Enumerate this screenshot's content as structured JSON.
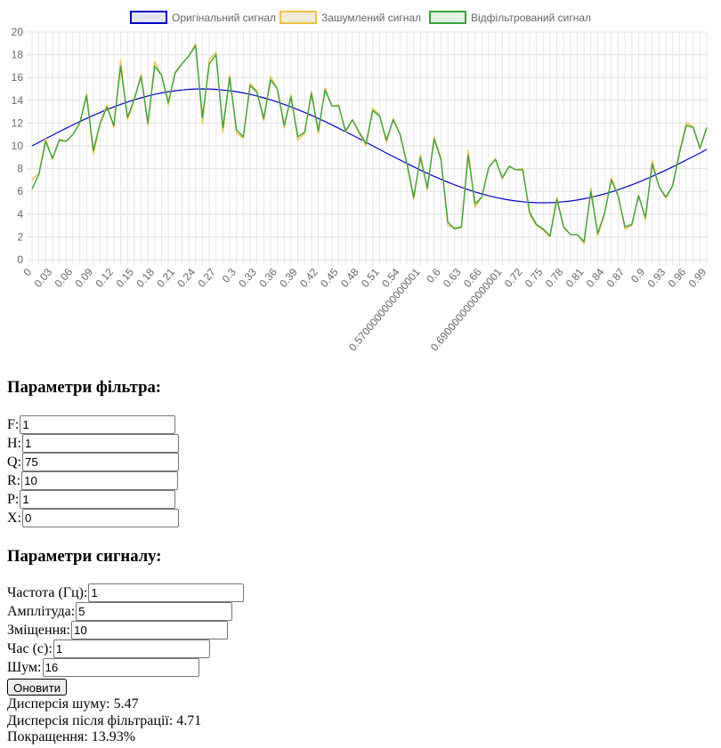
{
  "chart_data": {
    "type": "line",
    "legend_position": "top-center",
    "grid": true,
    "ylim": [
      0,
      20
    ],
    "y_ticks": [
      0,
      2,
      4,
      6,
      8,
      10,
      12,
      14,
      16,
      18,
      20
    ],
    "x_tick_labels": [
      "0",
      "0.03",
      "0.06",
      "0.09",
      "0.12",
      "0.15",
      "0.18",
      "0.21",
      "0.24",
      "0.27",
      "0.3",
      "0.33",
      "0.36",
      "0.39",
      "0.42",
      "0.45",
      "0.48",
      "0.51",
      "0.54",
      "0.5700000000000001",
      "0.6",
      "0.63",
      "0.66",
      "0.6900000000000001",
      "0.72",
      "0.75",
      "0.78",
      "0.81",
      "0.84",
      "0.87",
      "0.9",
      "0.93",
      "0.96",
      "0.99"
    ],
    "x": [
      0,
      0.01,
      0.02,
      0.03,
      0.04,
      0.05,
      0.06,
      0.07,
      0.08,
      0.09,
      0.1,
      0.11,
      0.12,
      0.13,
      0.14,
      0.15,
      0.16,
      0.17,
      0.18,
      0.19,
      0.2,
      0.21,
      0.22,
      0.23,
      0.24,
      0.25,
      0.26,
      0.27,
      0.28,
      0.29,
      0.3,
      0.31,
      0.32,
      0.33,
      0.34,
      0.35,
      0.36,
      0.37,
      0.38,
      0.39,
      0.4,
      0.41,
      0.42,
      0.43,
      0.44,
      0.45,
      0.46,
      0.47,
      0.48,
      0.49,
      0.5,
      0.51,
      0.52,
      0.53,
      0.54,
      0.55,
      0.56,
      0.57,
      0.58,
      0.59,
      0.6,
      0.61,
      0.62,
      0.63,
      0.64,
      0.65,
      0.66,
      0.67,
      0.68,
      0.69,
      0.7,
      0.71,
      0.72,
      0.73,
      0.74,
      0.75,
      0.76,
      0.77,
      0.78,
      0.79,
      0.8,
      0.81,
      0.82,
      0.83,
      0.84,
      0.85,
      0.86,
      0.87,
      0.88,
      0.89,
      0.9,
      0.91,
      0.92,
      0.93,
      0.94,
      0.95,
      0.96,
      0.97,
      0.98,
      0.99
    ],
    "series": [
      {
        "name": "Оригінальний сигнал",
        "color": "#0000cc",
        "fill": "#e5e5f5",
        "values": [
          10,
          10.31,
          10.63,
          10.94,
          11.24,
          11.55,
          11.84,
          12.13,
          12.41,
          12.68,
          12.94,
          13.19,
          13.42,
          13.64,
          13.85,
          14.05,
          14.22,
          14.38,
          14.52,
          14.65,
          14.76,
          14.84,
          14.91,
          14.96,
          14.99,
          15,
          14.99,
          14.96,
          14.91,
          14.84,
          14.76,
          14.65,
          14.52,
          14.38,
          14.22,
          14.05,
          13.85,
          13.64,
          13.42,
          13.19,
          12.94,
          12.68,
          12.41,
          12.13,
          11.84,
          11.55,
          11.24,
          10.94,
          10.63,
          10.31,
          10,
          9.69,
          9.37,
          9.06,
          8.76,
          8.45,
          8.16,
          7.87,
          7.59,
          7.32,
          7.06,
          6.81,
          6.58,
          6.36,
          6.15,
          5.95,
          5.78,
          5.62,
          5.48,
          5.35,
          5.24,
          5.16,
          5.09,
          5.04,
          5.01,
          5,
          5.01,
          5.04,
          5.09,
          5.16,
          5.24,
          5.35,
          5.48,
          5.62,
          5.78,
          5.95,
          6.15,
          6.36,
          6.58,
          6.81,
          7.06,
          7.32,
          7.59,
          7.87,
          8.16,
          8.45,
          8.76,
          9.06,
          9.37,
          9.69
        ]
      },
      {
        "name": "Зашумлений сигнал",
        "color": "#f0c040",
        "fill": "#f1ebd9",
        "values": [
          7,
          7.6,
          10.6,
          8.8,
          10.6,
          10.4,
          11.0,
          12.0,
          14.6,
          9.3,
          12.0,
          13.6,
          11.6,
          17.5,
          12.3,
          14.0,
          16.3,
          11.8,
          17.4,
          16.2,
          13.6,
          16.5,
          17.2,
          17.9,
          19.0,
          12.0,
          17.6,
          18.2,
          11.2,
          16.2,
          11.1,
          10.7,
          15.5,
          14.8,
          12.2,
          16.1,
          15.0,
          11.6,
          14.5,
          10.5,
          11.1,
          14.8,
          11.1,
          15.1,
          13.5,
          13.6,
          11.2,
          12.3,
          11.1,
          10.0,
          13.3,
          12.7,
          10.3,
          12.4,
          11.0,
          8.4,
          5.3,
          9.2,
          6.1,
          10.8,
          8.9,
          3.0,
          2.8,
          2.8,
          9.6,
          4.6,
          5.5,
          8.1,
          8.9,
          7.1,
          8.2,
          7.9,
          8.0,
          4.0,
          3.0,
          2.6,
          2.0,
          5.5,
          2.8,
          2.2,
          2.2,
          1.4,
          6.3,
          2.1,
          4.0,
          7.2,
          5.6,
          2.7,
          3.0,
          5.7,
          3.5,
          8.7,
          6.4,
          5.4,
          6.5,
          9.5,
          12.0,
          11.7,
          9.8,
          11.6
        ]
      },
      {
        "name": "Відфільтрований сигнал",
        "color": "#3aa33a",
        "fill": "#e2efe2",
        "values": [
          6.2,
          7.5,
          10.4,
          8.9,
          10.5,
          10.4,
          11.0,
          12.0,
          14.4,
          9.6,
          12.0,
          13.4,
          11.8,
          17.0,
          12.5,
          14.1,
          16.1,
          12.0,
          17.0,
          16.2,
          13.8,
          16.4,
          17.2,
          17.9,
          18.8,
          12.5,
          17.2,
          18.0,
          11.6,
          16.0,
          11.4,
          10.8,
          15.3,
          14.7,
          12.4,
          15.8,
          15.0,
          11.8,
          14.3,
          10.8,
          11.2,
          14.6,
          11.3,
          14.9,
          13.5,
          13.5,
          11.3,
          12.3,
          11.2,
          10.2,
          13.1,
          12.6,
          10.5,
          12.3,
          11.0,
          8.5,
          5.5,
          9.0,
          6.3,
          10.6,
          8.8,
          3.3,
          2.7,
          2.9,
          9.2,
          4.9,
          5.5,
          8.1,
          8.8,
          7.2,
          8.2,
          7.9,
          7.9,
          4.2,
          3.1,
          2.7,
          2.1,
          5.3,
          2.9,
          2.2,
          2.2,
          1.6,
          6.0,
          2.3,
          4.1,
          7.0,
          5.6,
          2.9,
          3.1,
          5.6,
          3.7,
          8.4,
          6.4,
          5.5,
          6.5,
          9.4,
          11.8,
          11.6,
          9.8,
          11.6
        ]
      }
    ]
  },
  "filter_params": {
    "heading": "Параметри фільтра:",
    "fields": [
      {
        "label": "F:",
        "value": "1"
      },
      {
        "label": "H:",
        "value": "1"
      },
      {
        "label": "Q:",
        "value": "75"
      },
      {
        "label": "R:",
        "value": "10"
      },
      {
        "label": "P:",
        "value": "1"
      },
      {
        "label": "X:",
        "value": "0"
      }
    ]
  },
  "signal_params": {
    "heading": "Параметри сигналу:",
    "fields": [
      {
        "label": "Частота (Гц):",
        "value": "1"
      },
      {
        "label": "Амплітуда:",
        "value": "5"
      },
      {
        "label": "Зміщення:",
        "value": "10"
      },
      {
        "label": "Час (с):",
        "value": "1"
      },
      {
        "label": "Шум:",
        "value": "16"
      }
    ],
    "update_button": "Оновити"
  },
  "results": {
    "noise_variance": "Дисперсія шуму: 5.47",
    "filtered_variance": "Дисперсія після фільтрації: 4.71",
    "improvement": "Покращення: 13.93%"
  }
}
